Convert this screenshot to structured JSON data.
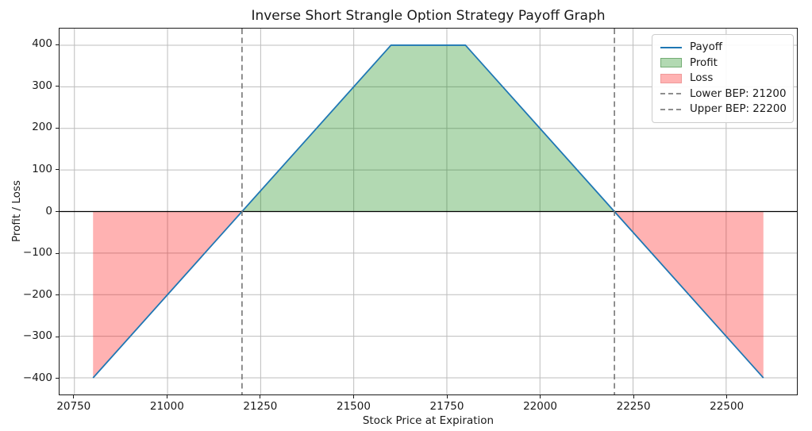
{
  "title": "Inverse Short Strangle Option Strategy Payoff Graph",
  "chart_data": {
    "type": "line",
    "title": "Inverse Short Strangle Option Strategy Payoff Graph",
    "xlabel": "Stock Price at Expiration",
    "ylabel": "Profit / Loss",
    "xlim": [
      20710,
      22690
    ],
    "ylim": [
      -440,
      440
    ],
    "xticks": [
      20750,
      21000,
      21250,
      21500,
      21750,
      22000,
      22250,
      22500
    ],
    "xtick_labels": [
      "20750",
      "21000",
      "21250",
      "21500",
      "21750",
      "22000",
      "22250",
      "22500"
    ],
    "yticks": [
      400,
      300,
      200,
      100,
      0,
      -100,
      -200,
      -300,
      -400
    ],
    "ytick_labels": [
      "400",
      "300",
      "200",
      "100",
      "0",
      "−100",
      "−200",
      "−300",
      "−400"
    ],
    "grid": true,
    "grid_color": "#bdbdbd",
    "zero_line_y": 0,
    "zero_line_color": "#000000",
    "series": [
      {
        "name": "Payoff",
        "x": [
          20800,
          21600,
          21800,
          22600
        ],
        "y": [
          -400,
          400,
          400,
          -400
        ],
        "color": "#1f77b4"
      }
    ],
    "regions": [
      {
        "name": "Profit",
        "points": [
          [
            21200,
            0
          ],
          [
            21600,
            400
          ],
          [
            21800,
            400
          ],
          [
            22200,
            0
          ]
        ],
        "fill": "rgba(0,128,0,0.3)"
      },
      {
        "name": "Loss",
        "points": [
          [
            20800,
            0
          ],
          [
            21200,
            0
          ],
          [
            20800,
            -400
          ]
        ],
        "fill": "rgba(255,0,0,0.3)"
      },
      {
        "name": "Loss",
        "points": [
          [
            22200,
            0
          ],
          [
            22600,
            0
          ],
          [
            22600,
            -400
          ]
        ],
        "fill": "rgba(255,0,0,0.3)"
      }
    ],
    "vlines": [
      {
        "x": 21200,
        "label": "Lower BEP: 21200",
        "color": "#757575"
      },
      {
        "x": 22200,
        "label": "Upper BEP: 22200",
        "color": "#757575"
      }
    ],
    "breakevens": {
      "lower": 21200,
      "upper": 22200
    },
    "max_profit": 400,
    "max_loss": -400,
    "legend": {
      "position": "upper right",
      "items": [
        {
          "type": "line",
          "label": "Payoff",
          "color": "#1f77b4"
        },
        {
          "type": "patch",
          "label": "Profit",
          "face": "rgba(0,128,0,0.3)",
          "edge": "#74ad74"
        },
        {
          "type": "patch",
          "label": "Loss",
          "face": "rgba(255,0,0,0.3)",
          "edge": "#ef9a9a"
        },
        {
          "type": "dashed",
          "label": "Lower BEP: 21200",
          "color": "#7f7f7f"
        },
        {
          "type": "dashed",
          "label": "Upper BEP: 22200",
          "color": "#7f7f7f"
        }
      ]
    }
  }
}
